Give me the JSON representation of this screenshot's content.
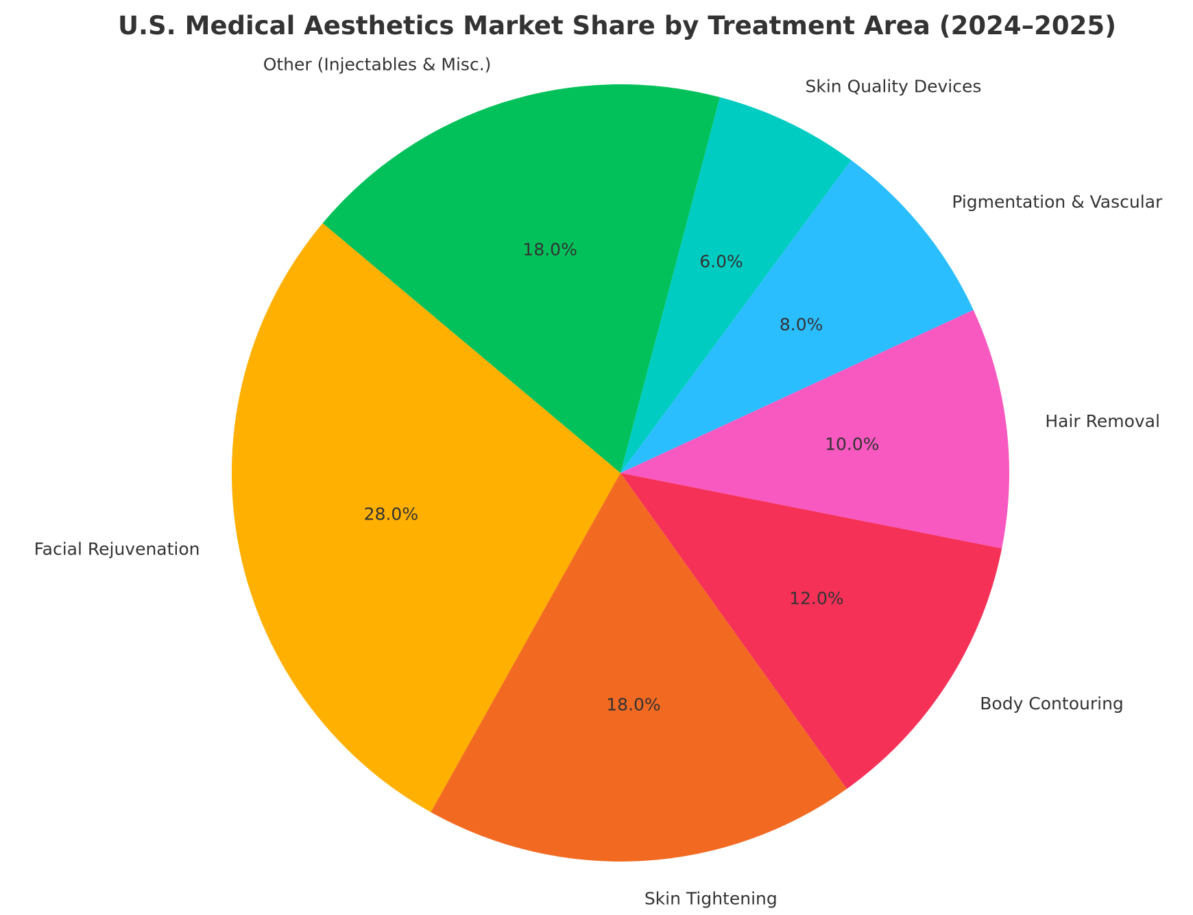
{
  "chart_data": {
    "type": "pie",
    "title": "U.S. Medical Aesthetics Market Share by Treatment Area (2024–2025)",
    "categories": [
      "Facial Rejuvenation",
      "Skin Tightening",
      "Body Contouring",
      "Hair Removal",
      "Pigmentation & Vascular",
      "Skin Quality Devices",
      "Other (Injectables & Misc.)"
    ],
    "values": [
      28,
      18,
      12,
      10,
      8,
      6,
      18
    ],
    "value_labels": [
      "28.0%",
      "18.0%",
      "12.0%",
      "10.0%",
      "8.0%",
      "6.0%",
      "18.0%"
    ],
    "colors": [
      "#FFB000",
      "#F26A21",
      "#F53158",
      "#F759C0",
      "#2BBEFF",
      "#00CCC1",
      "#02C15A"
    ],
    "start_angle_deg": 140,
    "direction": "counterclockwise",
    "legend": "none"
  }
}
